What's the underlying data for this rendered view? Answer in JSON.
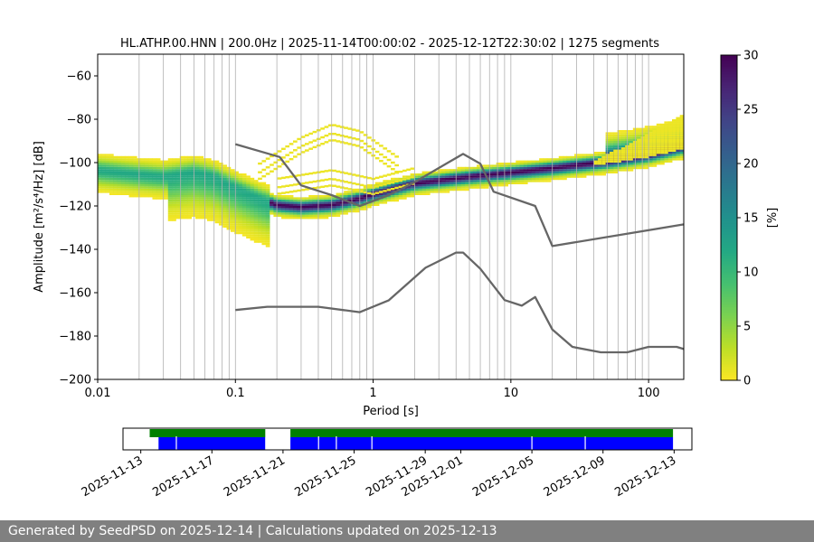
{
  "title": "HL.ATHP.00.HNN | 200.0Hz | 2025-11-14T00:00:02 - 2025-12-12T22:30:02 | 1275 segments",
  "footer": "Generated by SeedPSD on 2025-12-14 | Calculations updated on 2025-12-13",
  "chart_data": [
    {
      "type": "heatmap",
      "title": "HL.ATHP.00.HNN | 200.0Hz | 2025-11-14T00:00:02 - 2025-12-12T22:30:02 | 1275 segments",
      "xlabel": "Period [s]",
      "ylabel": "Amplitude [m²/s⁴/Hz] [dB]",
      "x_scale": "log",
      "xlim": [
        0.01,
        180
      ],
      "ylim": [
        -200,
        -50
      ],
      "x_ticks": [
        0.01,
        0.1,
        1,
        10,
        100
      ],
      "x_tick_labels": [
        "0.01",
        "0.1",
        "1",
        "10",
        "100"
      ],
      "y_ticks": [
        -200,
        -180,
        -160,
        -140,
        -120,
        -100,
        -80,
        -60
      ],
      "y_tick_labels": [
        "−200",
        "−180",
        "−160",
        "−140",
        "−120",
        "−100",
        "−80",
        "−60"
      ],
      "grid": "x-minor-vertical",
      "colorbar": {
        "label": "[%]",
        "range": [
          0,
          30
        ],
        "ticks": [
          0,
          5,
          10,
          15,
          20,
          25,
          30
        ],
        "tick_labels": [
          "0",
          "5",
          "10",
          "15",
          "20",
          "25",
          "30"
        ],
        "colormap": "viridis-reversed"
      },
      "density_bands": [
        {
          "name": "main",
          "percent_peak": 30,
          "center": [
            [
              0.01,
              -104
            ],
            [
              0.02,
              -106
            ],
            [
              0.03,
              -107
            ],
            [
              0.05,
              -105
            ],
            [
              0.07,
              -107
            ],
            [
              0.1,
              -112
            ],
            [
              0.15,
              -117
            ],
            [
              0.2,
              -120
            ],
            [
              0.3,
              -121
            ],
            [
              0.5,
              -120
            ],
            [
              0.8,
              -117
            ],
            [
              1,
              -115
            ],
            [
              2,
              -110
            ],
            [
              5,
              -107
            ],
            [
              10,
              -105
            ],
            [
              20,
              -103
            ],
            [
              50,
              -100
            ],
            [
              100,
              -97
            ],
            [
              180,
              -93
            ]
          ]
        },
        {
          "name": "high-spread",
          "percent_peak": 3,
          "center": [
            [
              0.15,
              -105
            ],
            [
              0.3,
              -93
            ],
            [
              0.5,
              -87
            ],
            [
              0.8,
              -90
            ],
            [
              1.5,
              -102
            ]
          ]
        },
        {
          "name": "secondary",
          "percent_peak": 2,
          "center": [
            [
              0.2,
              -112
            ],
            [
              0.5,
              -108
            ],
            [
              1,
              -112
            ],
            [
              2,
              -107
            ]
          ]
        }
      ],
      "series": [
        {
          "name": "",
          "x": [
            0.1,
            0.21,
            0.3,
            0.5,
            0.8,
            1.3,
            2,
            3.5,
            4.5,
            6,
            7.5,
            15,
            20,
            180
          ],
          "y": [
            -91.5,
            -97.4,
            -110.5,
            -115.0,
            -120.0,
            -115.0,
            -109.0,
            -100.0,
            -96.0,
            -100.5,
            -113.4,
            -120.0,
            -138.5,
            -128.5
          ]
        },
        {
          "name": "",
          "x": [
            0.1,
            0.17,
            0.4,
            0.8,
            1.3,
            2.4,
            4.0,
            4.5,
            6,
            9.0,
            12,
            15,
            20,
            28,
            45,
            70,
            100,
            160,
            180
          ],
          "y": [
            -168,
            -166.5,
            -166.5,
            -169.0,
            -163.5,
            -148.5,
            -141.5,
            -141.5,
            -149.0,
            -163.4,
            -166.0,
            -162.0,
            -177.0,
            -185.0,
            -187.5,
            -187.5,
            -185.0,
            -185.0,
            -186.0
          ]
        }
      ]
    },
    {
      "type": "timeline",
      "x_tick_labels": [
        "2025-11-13",
        "2025-11-17",
        "2025-11-21",
        "2025-11-25",
        "2025-11-29",
        "2025-12-01",
        "2025-12-05",
        "2025-12-09",
        "2025-12-13"
      ],
      "xlim": [
        "2025-11-12",
        "2025-12-14"
      ],
      "series": [
        {
          "name": "",
          "color": "#008000",
          "intervals": [
            [
              "2025-11-13T12:00",
              "2025-11-20T00:00"
            ],
            [
              "2025-11-21T10:00",
              "2025-12-12T22:30"
            ]
          ]
        },
        {
          "name": "",
          "color": "#0000ff",
          "intervals": [
            [
              "2025-11-14T00:00",
              "2025-11-20T00:00"
            ],
            [
              "2025-11-21T10:00",
              "2025-12-12T22:30"
            ]
          ],
          "gaps": [
            "2025-11-15T00:00",
            "2025-11-23T00:00",
            "2025-11-24T00:00",
            "2025-11-26T00:00",
            "2025-12-05T00:00",
            "2025-12-08T00:00"
          ]
        }
      ]
    }
  ],
  "colors": {
    "guide_line": "#666666",
    "grid": "#b0b0b0",
    "footer_bg": "#808080"
  }
}
